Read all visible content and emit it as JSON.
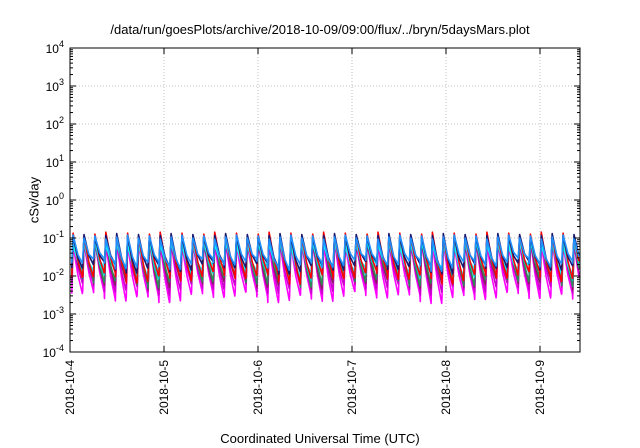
{
  "chart_data": {
    "type": "line",
    "title": "/data/run/goesPlots/archive/2018-10-09/09:00/flux/../bryn/5daysMars.plot",
    "xlabel": "Coordinated Universal Time (UTC)",
    "ylabel": "cSv/day",
    "y_scale": "log",
    "ylim": [
      0.0001,
      10000
    ],
    "xlim": [
      "2018-10-04 00:00",
      "2018-10-09 10:00"
    ],
    "y_ticks": [
      {
        "base": "10",
        "exp": "-4",
        "value": 0.0001
      },
      {
        "base": "10",
        "exp": "-3",
        "value": 0.001
      },
      {
        "base": "10",
        "exp": "-2",
        "value": 0.01
      },
      {
        "base": "10",
        "exp": "-1",
        "value": 0.1
      },
      {
        "base": "10",
        "exp": "0",
        "value": 1
      },
      {
        "base": "10",
        "exp": "1",
        "value": 10
      },
      {
        "base": "10",
        "exp": "2",
        "value": 100
      },
      {
        "base": "10",
        "exp": "3",
        "value": 1000
      },
      {
        "base": "10",
        "exp": "4",
        "value": 10000
      }
    ],
    "x_ticks": [
      "2018-10-4",
      "2018-10-5",
      "2018-10-6",
      "2018-10-7",
      "2018-10-8",
      "2018-10-9"
    ],
    "grid": true,
    "legend": "none",
    "cycle_hours": 2.78,
    "series": [
      {
        "color": "#ff00ff",
        "peak": 0.075,
        "trough": 0.003
      },
      {
        "color": "#cc00cc",
        "peak": 0.085,
        "trough": 0.005
      },
      {
        "color": "#8b1c62",
        "peak": 0.1,
        "trough": 0.007
      },
      {
        "color": "#2e8b57",
        "peak": 0.11,
        "trough": 0.008
      },
      {
        "color": "#00ced1",
        "peak": 0.09,
        "trough": 0.012
      },
      {
        "color": "#00ffff",
        "peak": 0.075,
        "trough": 0.016
      },
      {
        "color": "#ff0000",
        "peak": 0.13,
        "trough": 0.01
      },
      {
        "color": "#191970",
        "peak": 0.12,
        "trough": 0.018
      },
      {
        "color": "#1e90ff",
        "peak": 0.11,
        "trough": 0.022
      }
    ]
  }
}
